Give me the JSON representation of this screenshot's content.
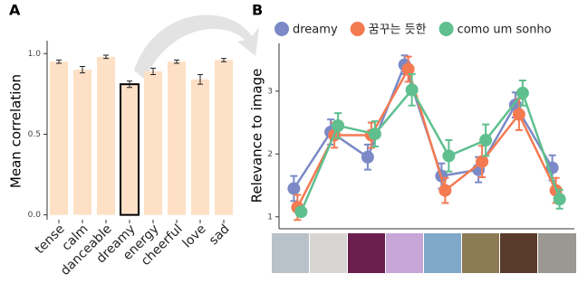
{
  "panels": [
    {
      "label": "A",
      "chart_data": {
        "type": "bar",
        "y_label": "Mean correlation",
        "categories": [
          "tense",
          "calm",
          "danceable",
          "dreamy",
          "energy",
          "cheerful",
          "love",
          "sad"
        ],
        "values": [
          0.95,
          0.9,
          0.98,
          0.81,
          0.89,
          0.95,
          0.84,
          0.96
        ],
        "errors": [
          0.01,
          0.02,
          0.01,
          0.02,
          0.02,
          0.01,
          0.03,
          0.01
        ],
        "color": "#fde0c5",
        "highlight_index": 3,
        "ylim": [
          -0.03,
          1.08
        ],
        "yticks": [
          {
            "value": 0,
            "label": "0.0"
          },
          {
            "value": 0.5,
            "label": "0.5"
          },
          {
            "value": 1,
            "label": "1.0"
          }
        ]
      }
    },
    {
      "label": "B",
      "chart_data": {
        "type": "line",
        "y_label": "Relevance to image",
        "categories": [
          null,
          null,
          null,
          null,
          null,
          null,
          null,
          null
        ],
        "series": [
          {
            "name": "dreamy",
            "color": "#7b8ac6",
            "values": [
              1.45,
              2.35,
              1.95,
              3.42,
              1.65,
              1.75,
              2.78,
              1.78
            ],
            "errors": [
              0.2,
              0.2,
              0.2,
              0.15,
              0.2,
              0.2,
              0.2,
              0.2
            ]
          },
          {
            "name": "꿈꾸는 듯한",
            "color": "#f47a52",
            "values": [
              1.15,
              2.3,
              2.3,
              3.35,
              1.42,
              1.88,
              2.63,
              1.42
            ],
            "errors": [
              0.2,
              0.2,
              0.2,
              0.2,
              0.2,
              0.25,
              0.25,
              0.2
            ]
          },
          {
            "name": "como um sonho",
            "color": "#5fbf8f",
            "values": [
              1.08,
              2.45,
              2.32,
              3.02,
              1.97,
              2.22,
              2.97,
              1.28
            ],
            "errors": [
              0.05,
              0.2,
              0.2,
              0.25,
              0.25,
              0.25,
              0.2,
              0.15
            ]
          }
        ],
        "ylim": [
          0.81,
          3.76
        ],
        "yticks": [
          1,
          2,
          3
        ]
      }
    }
  ]
}
